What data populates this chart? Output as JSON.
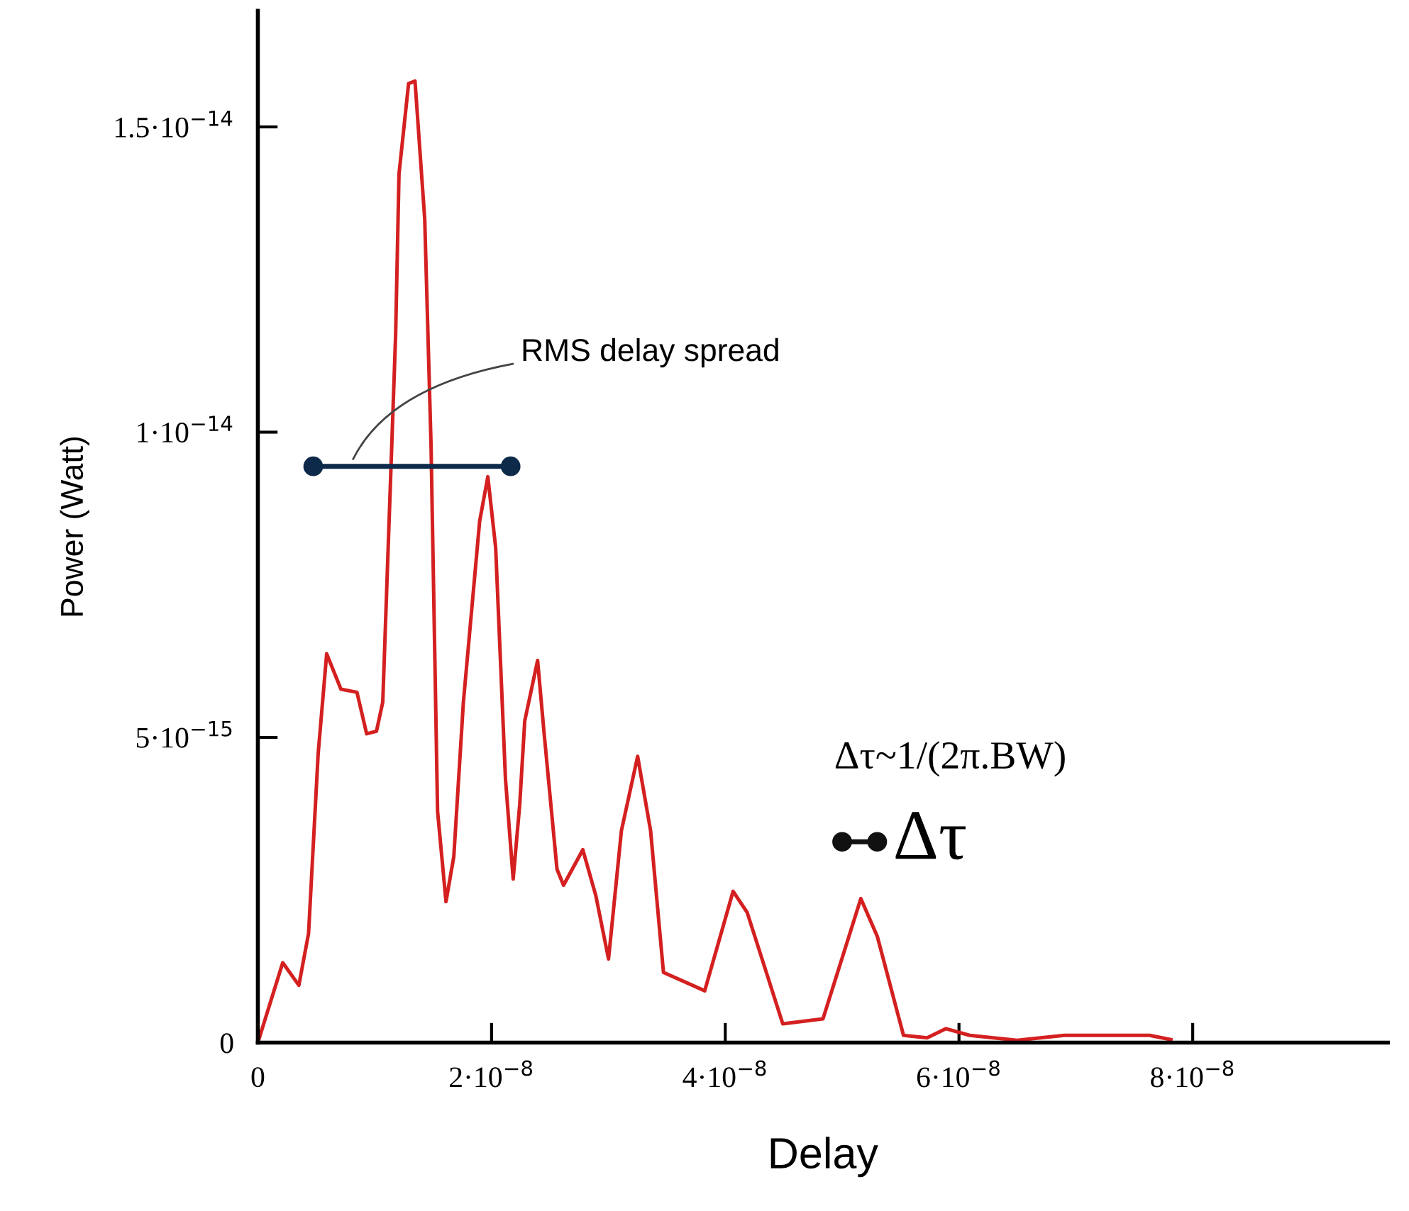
{
  "chart_data": {
    "type": "line",
    "xlabel": "Delay",
    "ylabel": "Power (Watt)",
    "xlim": [
      0,
      9.67e-08
    ],
    "ylim": [
      0,
      1.69e-14
    ],
    "xticks": [
      0,
      {
        "value": 2e-08,
        "label": "2·10$^{−8}$"
      },
      {
        "value": 4e-08,
        "label": "4·10$^{−8}$"
      },
      {
        "value": 6e-08,
        "label": "6·10$^{−8}$"
      },
      {
        "value": 8e-08,
        "label": "8·10$^{−8}$"
      }
    ],
    "yticks": [
      0,
      {
        "value": 5e-15,
        "label": "5·10$^{−15}$"
      },
      {
        "value": 1e-14,
        "label": "1·10$^{−14}$"
      },
      {
        "value": 1.5e-14,
        "label": "1.5·10$^{−14}$"
      }
    ],
    "grid": false,
    "legend": false,
    "series": [
      {
        "color": "#d42020",
        "marker": "none",
        "x": [
          0,
          2.13e-09,
          3.51e-09,
          4.34e-09,
          5.16e-09,
          5.89e-09,
          7.11e-09,
          8.48e-09,
          9.31e-09,
          1.015e-08,
          1.069e-08,
          1.179e-08,
          1.208e-08,
          1.29e-08,
          1.345e-08,
          1.428e-08,
          1.482e-08,
          1.538e-08,
          1.61e-08,
          1.677e-08,
          1.759e-08,
          1.898e-08,
          1.968e-08,
          2.035e-08,
          2.119e-08,
          2.185e-08,
          2.241e-08,
          2.284e-08,
          2.394e-08,
          2.45e-08,
          2.56e-08,
          2.616e-08,
          2.781e-08,
          2.892e-08,
          3.001e-08,
          3.111e-08,
          3.25e-08,
          3.361e-08,
          3.471e-08,
          3.824e-08,
          4.067e-08,
          4.188e-08,
          4.492e-08,
          4.836e-08,
          5.16e-08,
          5.301e-08,
          5.525e-08,
          5.727e-08,
          5.889e-08,
          6.091e-08,
          6.497e-08,
          6.901e-08,
          7.631e-08,
          7.813e-08
        ],
        "values": [
          0,
          1.31e-15,
          9.4e-16,
          1.79e-15,
          4.73e-15,
          6.37e-15,
          5.79e-15,
          5.74e-15,
          5.06e-15,
          5.1e-15,
          5.58e-15,
          1.159e-14,
          1.423e-14,
          1.571e-14,
          1.575e-14,
          1.349e-14,
          9.8e-15,
          3.79e-15,
          2.31e-15,
          3.05e-15,
          5.58e-15,
          8.54e-15,
          9.27e-15,
          8.11e-15,
          4.32e-15,
          2.68e-15,
          3.9e-15,
          5.27e-15,
          6.26e-15,
          5.06e-15,
          2.84e-15,
          2.58e-15,
          3.16e-15,
          2.41e-15,
          1.37e-15,
          3.47e-15,
          4.69e-15,
          3.47e-15,
          1.15e-15,
          8.5e-16,
          2.48e-15,
          2.13e-15,
          3.1e-16,
          3.9e-16,
          2.36e-15,
          1.74e-15,
          1.2e-16,
          8e-17,
          2.3e-16,
          1.2e-16,
          4e-17,
          1.2e-16,
          1.2e-16,
          5e-17
        ]
      },
      {
        "color": "#0d2a4a",
        "marker": "circle",
        "x": [
          4.74e-09,
          2.163e-08
        ],
        "values": [
          9.44e-15,
          9.44e-15
        ]
      },
      {
        "color": "#111111",
        "marker": "circle",
        "x": [
          5e-08,
          5.3e-08
        ],
        "values": [
          3.29e-15,
          3.29e-15
        ]
      }
    ],
    "annotations": [
      {
        "text": "RMS delay spread",
        "x": 8e-09,
        "y": 9.5e-15
      },
      "Δτ~1/(2π.BW)",
      {
        "text": "Δτ",
        "x": 5.3e-08,
        "y": 3.29e-15
      }
    ]
  }
}
